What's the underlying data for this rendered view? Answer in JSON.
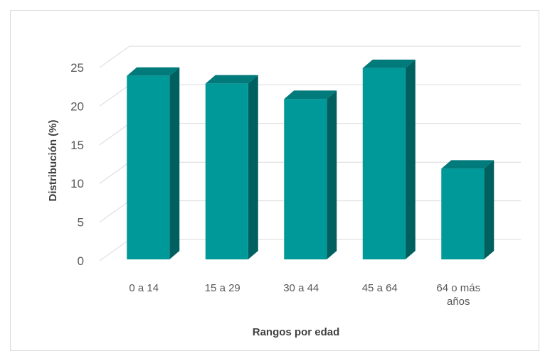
{
  "chart_data": {
    "type": "bar",
    "categories": [
      [
        "0 a 14"
      ],
      [
        "15 a 29"
      ],
      [
        "30 a 44"
      ],
      [
        "45 a 64"
      ],
      [
        "64 o más",
        "años"
      ]
    ],
    "values": [
      23,
      22,
      20,
      24,
      11
    ],
    "xlabel": "Rangos por edad",
    "ylabel": "Distribución (%)",
    "ylim": [
      0,
      25
    ],
    "yticks": [
      "0",
      "5",
      "10",
      "15",
      "20",
      "25"
    ],
    "grid": true,
    "style": "3d-column",
    "colors": {
      "front": "#009999",
      "side": "#005f5f",
      "top": "#007a7a",
      "grid": "#d9d9d9"
    }
  }
}
